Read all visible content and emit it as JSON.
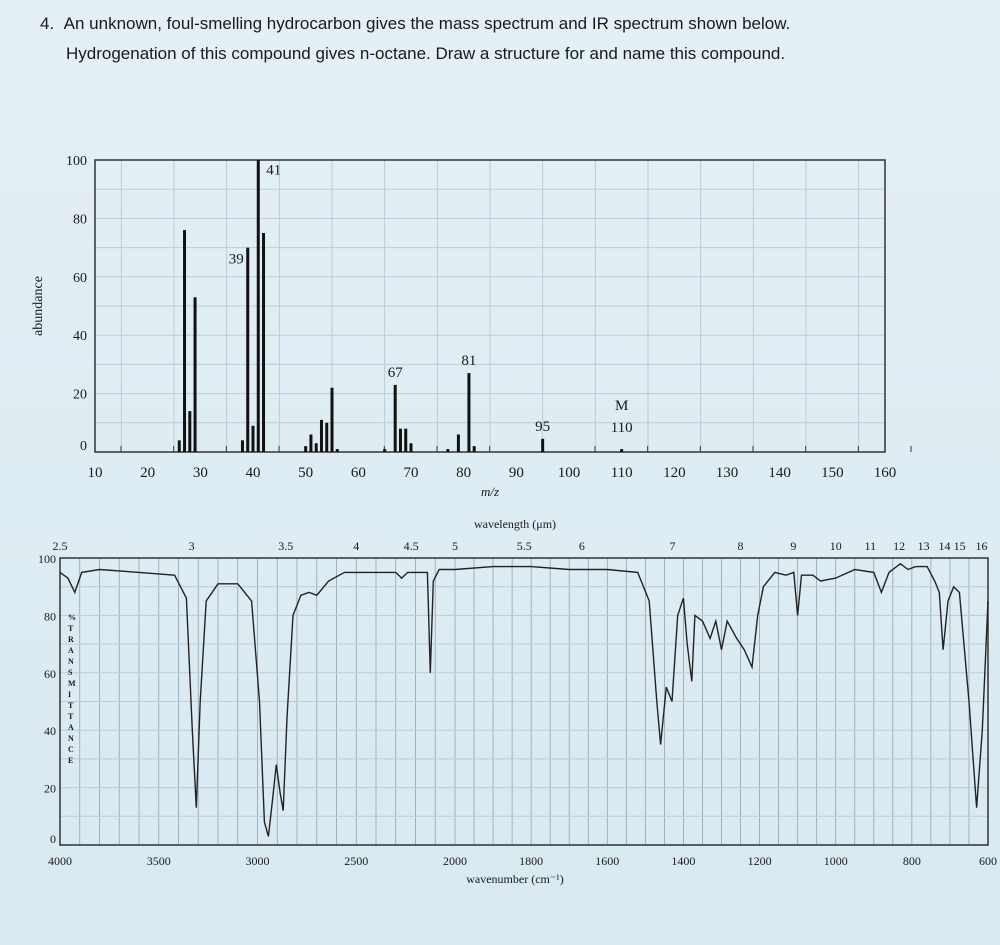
{
  "question": {
    "number": "4.",
    "line1": "An unknown, foul-smelling hydrocarbon gives the mass spectrum and IR spectrum shown below.",
    "line2": "Hydrogenation of this compound gives n-octane. Draw a structure for and name this compound."
  },
  "chart_data": [
    {
      "type": "bar",
      "xlabel": "m/z",
      "ylabel": "abundance",
      "xlim": [
        10,
        160
      ],
      "ylim": [
        0,
        100
      ],
      "xticks": [
        10,
        20,
        30,
        40,
        50,
        60,
        70,
        80,
        90,
        100,
        110,
        120,
        130,
        140,
        150,
        160
      ],
      "yticks": [
        0,
        20,
        40,
        60,
        80,
        100
      ],
      "grid": true,
      "peaks": [
        {
          "mz": 26,
          "abundance": 4
        },
        {
          "mz": 27,
          "abundance": 76
        },
        {
          "mz": 28,
          "abundance": 14
        },
        {
          "mz": 29,
          "abundance": 53
        },
        {
          "mz": 38,
          "abundance": 4
        },
        {
          "mz": 39,
          "abundance": 70
        },
        {
          "mz": 40,
          "abundance": 9
        },
        {
          "mz": 41,
          "abundance": 100
        },
        {
          "mz": 42,
          "abundance": 75
        },
        {
          "mz": 50,
          "abundance": 2
        },
        {
          "mz": 51,
          "abundance": 6
        },
        {
          "mz": 52,
          "abundance": 3
        },
        {
          "mz": 53,
          "abundance": 11
        },
        {
          "mz": 54,
          "abundance": 10
        },
        {
          "mz": 55,
          "abundance": 22
        },
        {
          "mz": 56,
          "abundance": 1
        },
        {
          "mz": 65,
          "abundance": 1
        },
        {
          "mz": 67,
          "abundance": 23
        },
        {
          "mz": 68,
          "abundance": 8
        },
        {
          "mz": 69,
          "abundance": 8
        },
        {
          "mz": 70,
          "abundance": 3
        },
        {
          "mz": 77,
          "abundance": 1
        },
        {
          "mz": 79,
          "abundance": 6
        },
        {
          "mz": 81,
          "abundance": 27
        },
        {
          "mz": 82,
          "abundance": 2
        },
        {
          "mz": 95,
          "abundance": 4.5
        },
        {
          "mz": 110,
          "abundance": 1
        }
      ],
      "annotations": [
        {
          "mz": 41,
          "text": "41"
        },
        {
          "mz": 39,
          "text": "39"
        },
        {
          "mz": 67,
          "text": "67"
        },
        {
          "mz": 81,
          "text": "81"
        },
        {
          "mz": 95,
          "text": "95"
        },
        {
          "mz": 110,
          "text": "110"
        },
        {
          "mz": 110,
          "text": "M"
        }
      ]
    },
    {
      "type": "line",
      "xlabel": "wavenumber (cm⁻¹)",
      "top_xlabel": "wavelength (μm)",
      "ylabel": "% TRANSMITTANCE",
      "xlim": [
        4000,
        600
      ],
      "ylim": [
        0,
        100
      ],
      "scale_change_at": 2000,
      "xticks": [
        4000,
        3500,
        3000,
        2500,
        2000,
        1800,
        1600,
        1400,
        1200,
        1000,
        800,
        600
      ],
      "yticks": [
        0,
        20,
        40,
        60,
        80,
        100
      ],
      "top_ticks": [
        "2.5",
        "3",
        "3.5",
        "4",
        "4.5",
        "5",
        "5.5",
        "6",
        "7",
        "8",
        "9",
        "10",
        "11",
        "12",
        "13",
        "14",
        "15",
        "16"
      ],
      "grid": true,
      "points": [
        [
          4000,
          95
        ],
        [
          3960,
          93
        ],
        [
          3925,
          88
        ],
        [
          3890,
          95
        ],
        [
          3800,
          96
        ],
        [
          3600,
          95
        ],
        [
          3420,
          94
        ],
        [
          3360,
          86
        ],
        [
          3330,
          40
        ],
        [
          3310,
          13
        ],
        [
          3290,
          50
        ],
        [
          3260,
          85
        ],
        [
          3200,
          91
        ],
        [
          3100,
          91
        ],
        [
          3030,
          85
        ],
        [
          2990,
          50
        ],
        [
          2965,
          8
        ],
        [
          2945,
          3
        ],
        [
          2925,
          15
        ],
        [
          2905,
          28
        ],
        [
          2885,
          18
        ],
        [
          2870,
          12
        ],
        [
          2850,
          45
        ],
        [
          2820,
          80
        ],
        [
          2780,
          87
        ],
        [
          2740,
          88
        ],
        [
          2700,
          87
        ],
        [
          2640,
          92
        ],
        [
          2560,
          95
        ],
        [
          2400,
          95
        ],
        [
          2300,
          95
        ],
        [
          2270,
          93
        ],
        [
          2240,
          95
        ],
        [
          2140,
          95
        ],
        [
          2125,
          60
        ],
        [
          2110,
          92
        ],
        [
          2080,
          96
        ],
        [
          2000,
          96
        ],
        [
          1900,
          97
        ],
        [
          1800,
          97
        ],
        [
          1700,
          96
        ],
        [
          1600,
          96
        ],
        [
          1520,
          95
        ],
        [
          1490,
          85
        ],
        [
          1470,
          50
        ],
        [
          1460,
          35
        ],
        [
          1445,
          55
        ],
        [
          1430,
          50
        ],
        [
          1415,
          80
        ],
        [
          1400,
          86
        ],
        [
          1390,
          70
        ],
        [
          1378,
          57
        ],
        [
          1370,
          80
        ],
        [
          1350,
          78
        ],
        [
          1330,
          72
        ],
        [
          1315,
          78
        ],
        [
          1300,
          68
        ],
        [
          1285,
          78
        ],
        [
          1260,
          72
        ],
        [
          1240,
          68
        ],
        [
          1220,
          62
        ],
        [
          1205,
          80
        ],
        [
          1190,
          90
        ],
        [
          1160,
          95
        ],
        [
          1130,
          94
        ],
        [
          1110,
          95
        ],
        [
          1100,
          80
        ],
        [
          1090,
          94
        ],
        [
          1060,
          94
        ],
        [
          1040,
          92
        ],
        [
          1000,
          93
        ],
        [
          950,
          96
        ],
        [
          900,
          95
        ],
        [
          880,
          88
        ],
        [
          860,
          95
        ],
        [
          830,
          98
        ],
        [
          810,
          96
        ],
        [
          790,
          97
        ],
        [
          760,
          97
        ],
        [
          740,
          92
        ],
        [
          728,
          88
        ],
        [
          718,
          68
        ],
        [
          705,
          85
        ],
        [
          690,
          90
        ],
        [
          675,
          88
        ],
        [
          650,
          50
        ],
        [
          630,
          13
        ],
        [
          615,
          40
        ],
        [
          600,
          85
        ]
      ]
    }
  ]
}
